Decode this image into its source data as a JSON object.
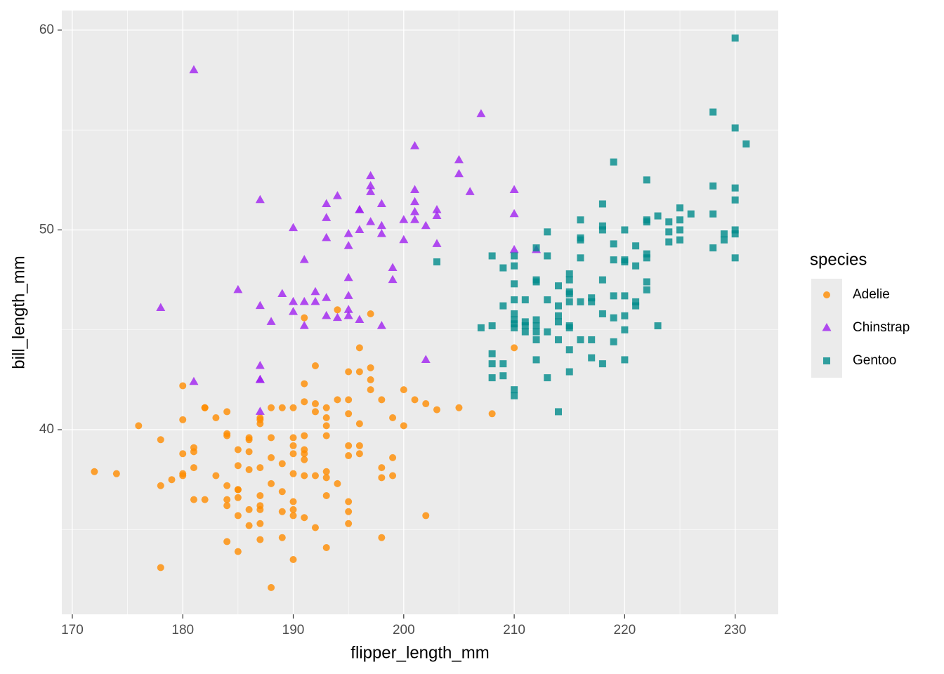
{
  "chart_data": {
    "type": "scatter",
    "x_label": "flipper_length_mm",
    "y_label": "bill_length_mm",
    "legend_title": "species",
    "legend_position": "right",
    "grid": true,
    "minor_grid": true,
    "xlim": [
      169.05,
      233.9
    ],
    "ylim": [
      30.76,
      60.98
    ],
    "xticks": [
      170,
      180,
      190,
      200,
      210,
      220,
      230
    ],
    "yticks": [
      40,
      50,
      60
    ],
    "series": [
      {
        "name": "Adelie",
        "color": "#FF8C00",
        "shape": "circle",
        "x": [
          172,
          174,
          176,
          178,
          178,
          178,
          179,
          180,
          180,
          180,
          180,
          180,
          181,
          181,
          181,
          181,
          182,
          182,
          182,
          183,
          183,
          184,
          184,
          184,
          184,
          184,
          184,
          184,
          185,
          185,
          185,
          185,
          185,
          185,
          185,
          186,
          186,
          186,
          186,
          186,
          186,
          187,
          187,
          187,
          187,
          187,
          187,
          187,
          187,
          187,
          188,
          188,
          188,
          188,
          188,
          189,
          189,
          189,
          189,
          189,
          190,
          190,
          190,
          190,
          190,
          190,
          190,
          190,
          190,
          191,
          191,
          191,
          191,
          191,
          191,
          191,
          191,
          191,
          192,
          192,
          192,
          192,
          192,
          193,
          193,
          193,
          193,
          193,
          193,
          193,
          193,
          194,
          194,
          194,
          195,
          195,
          195,
          195,
          195,
          195,
          195,
          195,
          196,
          196,
          196,
          196,
          196,
          197,
          197,
          197,
          197,
          198,
          198,
          198,
          198,
          199,
          199,
          199,
          200,
          200,
          201,
          202,
          202,
          203,
          205,
          208,
          210
        ],
        "y": [
          37.9,
          37.8,
          40.2,
          39.5,
          37.2,
          33.1,
          37.5,
          42.2,
          40.5,
          38.8,
          37.8,
          37.7,
          39.1,
          38.9,
          38.1,
          36.5,
          41.1,
          41.1,
          36.5,
          40.6,
          37.7,
          40.9,
          39.8,
          39.7,
          37.2,
          36.5,
          36.2,
          34.4,
          39.0,
          38.2,
          37.0,
          37.0,
          36.6,
          35.7,
          33.9,
          39.6,
          39.5,
          38.0,
          36.0,
          35.2,
          38.9,
          40.6,
          40.5,
          40.3,
          38.1,
          36.2,
          36.0,
          36.7,
          35.3,
          34.5,
          41.1,
          39.6,
          38.6,
          37.3,
          32.1,
          41.1,
          38.3,
          36.9,
          35.9,
          34.6,
          41.1,
          39.6,
          39.2,
          38.8,
          37.8,
          36.4,
          36.0,
          35.7,
          33.5,
          45.6,
          42.3,
          41.4,
          39.7,
          39.0,
          38.5,
          38.8,
          37.7,
          35.6,
          43.2,
          41.3,
          40.9,
          37.7,
          35.1,
          41.1,
          40.6,
          40.2,
          39.7,
          37.9,
          37.6,
          36.7,
          34.1,
          46.0,
          41.5,
          37.3,
          42.9,
          41.5,
          40.8,
          39.2,
          38.7,
          36.4,
          35.9,
          35.3,
          44.1,
          42.9,
          40.3,
          39.2,
          38.8,
          45.8,
          43.1,
          42.5,
          42.0,
          41.5,
          38.1,
          37.6,
          34.6,
          40.6,
          38.6,
          37.7,
          42.0,
          40.2,
          41.5,
          41.3,
          35.7,
          41.0,
          41.1,
          40.8,
          44.1
        ]
      },
      {
        "name": "Chinstrap",
        "color": "#A020F0",
        "shape": "triangle",
        "x": [
          178,
          181,
          181,
          185,
          187,
          187,
          187,
          187,
          187,
          187,
          188,
          189,
          190,
          190,
          190,
          191,
          191,
          191,
          192,
          192,
          193,
          193,
          193,
          193,
          193,
          194,
          194,
          195,
          195,
          195,
          195,
          195,
          195,
          196,
          196,
          196,
          196,
          197,
          197,
          197,
          197,
          198,
          198,
          198,
          198,
          199,
          199,
          200,
          200,
          201,
          201,
          201,
          201,
          201,
          202,
          202,
          203,
          203,
          203,
          205,
          205,
          206,
          207,
          210,
          210,
          210,
          212
        ],
        "y": [
          46.1,
          42.4,
          58.0,
          47.0,
          51.5,
          46.2,
          43.2,
          42.5,
          42.5,
          40.9,
          45.4,
          46.8,
          50.1,
          46.4,
          45.9,
          48.5,
          46.4,
          45.2,
          46.9,
          46.4,
          51.3,
          50.6,
          49.6,
          46.6,
          45.7,
          51.7,
          45.6,
          49.8,
          49.2,
          47.6,
          46.7,
          46.0,
          45.7,
          51.0,
          51.0,
          50.0,
          45.5,
          52.7,
          52.2,
          51.9,
          50.4,
          51.3,
          50.2,
          49.8,
          45.2,
          48.1,
          47.5,
          50.5,
          49.5,
          54.2,
          52.0,
          51.4,
          50.9,
          50.5,
          50.2,
          43.5,
          51.0,
          50.7,
          49.3,
          53.5,
          52.8,
          51.9,
          55.8,
          52.0,
          50.8,
          49.0,
          49.0
        ]
      },
      {
        "name": "Gentoo",
        "color": "#008B8B",
        "shape": "square",
        "x": [
          203,
          207,
          208,
          208,
          208,
          208,
          208,
          209,
          209,
          209,
          209,
          210,
          210,
          210,
          210,
          210,
          210,
          210,
          210,
          210,
          210,
          211,
          211,
          211,
          211,
          212,
          212,
          212,
          212,
          212,
          212,
          212,
          212,
          213,
          213,
          213,
          213,
          213,
          214,
          214,
          214,
          214,
          214,
          214,
          215,
          215,
          215,
          215,
          215,
          215,
          215,
          215,
          215,
          216,
          216,
          216,
          216,
          216,
          216,
          217,
          217,
          217,
          217,
          218,
          218,
          218,
          218,
          218,
          218,
          219,
          219,
          219,
          219,
          219,
          219,
          220,
          220,
          220,
          220,
          220,
          220,
          220,
          221,
          221,
          221,
          221,
          222,
          222,
          222,
          222,
          222,
          222,
          222,
          223,
          223,
          224,
          224,
          224,
          225,
          225,
          225,
          225,
          226,
          228,
          228,
          228,
          228,
          229,
          229,
          230,
          230,
          230,
          230,
          230,
          230,
          230,
          231
        ],
        "y": [
          48.4,
          45.1,
          48.7,
          45.2,
          43.8,
          43.3,
          42.6,
          48.1,
          46.2,
          43.3,
          42.7,
          48.7,
          48.2,
          47.3,
          46.5,
          45.8,
          45.5,
          45.3,
          45.1,
          42.0,
          41.7,
          46.5,
          45.4,
          45.2,
          44.9,
          49.1,
          47.5,
          47.4,
          45.5,
          45.2,
          44.9,
          44.5,
          43.5,
          49.9,
          48.7,
          46.5,
          44.9,
          42.6,
          47.2,
          45.7,
          45.4,
          46.2,
          44.5,
          40.9,
          47.8,
          47.5,
          46.9,
          46.8,
          46.4,
          45.2,
          45.1,
          44.0,
          42.9,
          50.5,
          49.6,
          49.5,
          48.6,
          46.4,
          44.5,
          46.6,
          46.4,
          44.5,
          43.6,
          51.3,
          50.2,
          50.0,
          47.5,
          45.8,
          43.3,
          53.4,
          49.3,
          48.5,
          46.7,
          45.6,
          44.4,
          50.0,
          48.5,
          48.4,
          46.7,
          45.7,
          45.0,
          43.5,
          49.2,
          48.2,
          46.4,
          46.2,
          50.5,
          50.4,
          48.8,
          48.6,
          47.4,
          47.0,
          52.5,
          50.7,
          45.2,
          50.4,
          49.9,
          49.4,
          51.1,
          50.5,
          50.0,
          49.5,
          50.8,
          55.9,
          52.2,
          50.8,
          49.1,
          49.8,
          49.5,
          59.6,
          55.1,
          52.1,
          51.5,
          50.0,
          49.8,
          48.6,
          54.3
        ]
      }
    ]
  }
}
